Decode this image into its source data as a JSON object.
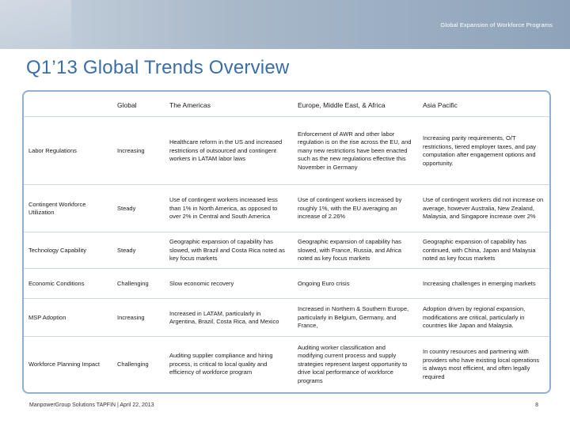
{
  "header": {
    "text": "Global Expansion of Workforce Programs"
  },
  "title": "Q1’13 Global Trends Overview",
  "table": {
    "columns": [
      "",
      "Global",
      "The Americas",
      "Europe, Middle East, & Africa",
      "Asia Pacific"
    ],
    "rows": [
      {
        "label": "Labor Regulations",
        "global": "Increasing",
        "americas": "Healthcare reform in the US and increased restrictions of outsourced and contingent workers in LATAM labor laws",
        "emea": "Enforcement of AWR and other labor regulation is on the rise across the EU, and many new restrictions have been enacted such as the new regulations effective this November in Germany",
        "apac": "Increasing parity requirements, O/T restrictions, tiered employer taxes, and pay computation after engagement options and opportunity."
      },
      {
        "label": "Contingent Workforce Utilization",
        "global": "Steady",
        "americas": "Use of contingent workers increased less than 1% in North America, as opposed to over 2% in Central and South America",
        "emea": "Use of contingent workers increased by roughly 1%, with the EU averaging an increase of 2.26%",
        "apac": "Use of contingent workers did not increase on average, however Australia, New Zealand, Malaysia, and Singapore increase over 2%"
      },
      {
        "label": "Technology Capability",
        "global": "Steady",
        "americas": "Geographic expansion of capability has slowed, with Brazil and Costa Rica noted as key focus markets",
        "emea": "Geographic expansion of capability has slowed, with France, Russia, and Africa noted as key focus markets",
        "apac": "Geographic expansion of capability has continued, with China, Japan and Malaysia noted as key focus markets"
      },
      {
        "label": "Economic Conditions",
        "global": "Challenging",
        "americas": "Slow economic recovery",
        "emea": "Ongoing Euro crisis",
        "apac": "Increasing challenges in emerging markets"
      },
      {
        "label": "MSP Adoption",
        "global": "Increasing",
        "americas": "Increased in LATAM, particularly in Argentina, Brazil, Costa Rica, and Mexico",
        "emea": "Increased in Northern & Southern Europe, particularly in Belgium, Germany, and France,",
        "apac": "Adoption driven by regional expansion, modifications are critical, particularly in countries like Japan and Malaysia."
      },
      {
        "label": "Workforce Planning Impact",
        "global": "Challenging",
        "americas": "Auditing supplier compliance and hiring process, is critical to local quality and efficiency of workforce program",
        "emea": "Auditing worker classification and modifying current process and supply strategies represent largest opportunity to drive local performance of workforce programs",
        "apac": "In country resources and partnering with providers who have existing local operations is always most efficient, and often legally required"
      }
    ]
  },
  "footer": {
    "text": "ManpowerGroup Solutions TAPFIN | April 22, 2013",
    "page": "8"
  }
}
